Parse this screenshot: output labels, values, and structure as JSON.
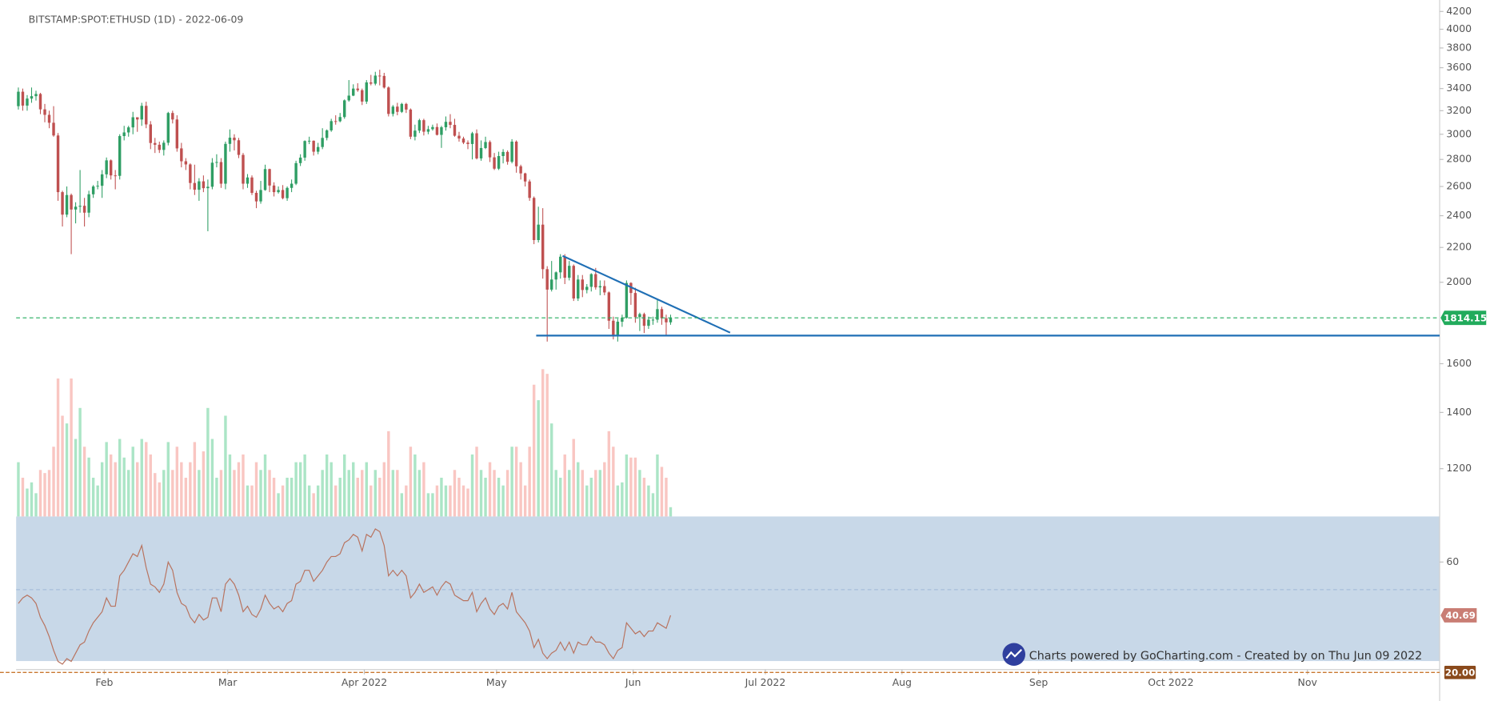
{
  "chart_data": {
    "type": "candlestick",
    "title": "BITSTAMP:SPOT:ETHUSD (1D) - 2022-06-09",
    "watermark": "Charts powered by GoCharting.com - Created by  on Thu Jun 09 2022",
    "x": [
      "2022-01-12",
      "2022-01-13",
      "2022-01-14",
      "2022-01-15",
      "2022-01-16",
      "2022-01-17",
      "2022-01-18",
      "2022-01-19",
      "2022-01-20",
      "2022-01-21",
      "2022-01-22",
      "2022-01-23",
      "2022-01-24",
      "2022-01-25",
      "2022-01-26",
      "2022-01-27",
      "2022-01-28",
      "2022-01-29",
      "2022-01-30",
      "2022-01-31",
      "2022-02-01",
      "2022-02-02",
      "2022-02-03",
      "2022-02-04",
      "2022-02-05",
      "2022-02-06",
      "2022-02-07",
      "2022-02-08",
      "2022-02-09",
      "2022-02-10",
      "2022-02-11",
      "2022-02-12",
      "2022-02-13",
      "2022-02-14",
      "2022-02-15",
      "2022-02-16",
      "2022-02-17",
      "2022-02-18",
      "2022-02-19",
      "2022-02-20",
      "2022-02-21",
      "2022-02-22",
      "2022-02-23",
      "2022-02-24",
      "2022-02-25",
      "2022-02-26",
      "2022-02-27",
      "2022-02-28",
      "2022-03-01",
      "2022-03-02",
      "2022-03-03",
      "2022-03-04",
      "2022-03-05",
      "2022-03-06",
      "2022-03-07",
      "2022-03-08",
      "2022-03-09",
      "2022-03-10",
      "2022-03-11",
      "2022-03-12",
      "2022-03-13",
      "2022-03-14",
      "2022-03-15",
      "2022-03-16",
      "2022-03-17",
      "2022-03-18",
      "2022-03-19",
      "2022-03-20",
      "2022-03-21",
      "2022-03-22",
      "2022-03-23",
      "2022-03-24",
      "2022-03-25",
      "2022-03-26",
      "2022-03-27",
      "2022-03-28",
      "2022-03-29",
      "2022-03-30",
      "2022-03-31",
      "2022-04-01",
      "2022-04-02",
      "2022-04-03",
      "2022-04-04",
      "2022-04-05",
      "2022-04-06",
      "2022-04-07",
      "2022-04-08",
      "2022-04-09",
      "2022-04-10",
      "2022-04-11",
      "2022-04-12",
      "2022-04-13",
      "2022-04-14",
      "2022-04-15",
      "2022-04-16",
      "2022-04-17",
      "2022-04-18",
      "2022-04-19",
      "2022-04-20",
      "2022-04-21",
      "2022-04-22",
      "2022-04-23",
      "2022-04-24",
      "2022-04-25",
      "2022-04-26",
      "2022-04-27",
      "2022-04-28",
      "2022-04-29",
      "2022-04-30",
      "2022-05-01",
      "2022-05-02",
      "2022-05-03",
      "2022-05-04",
      "2022-05-05",
      "2022-05-06",
      "2022-05-07",
      "2022-05-08",
      "2022-05-09",
      "2022-05-10",
      "2022-05-11",
      "2022-05-12",
      "2022-05-13",
      "2022-05-14",
      "2022-05-15",
      "2022-05-16",
      "2022-05-17",
      "2022-05-18",
      "2022-05-19",
      "2022-05-20",
      "2022-05-21",
      "2022-05-22",
      "2022-05-23",
      "2022-05-24",
      "2022-05-25",
      "2022-05-26",
      "2022-05-27",
      "2022-05-28",
      "2022-05-29",
      "2022-05-30",
      "2022-05-31",
      "2022-06-01",
      "2022-06-02",
      "2022-06-03",
      "2022-06-04",
      "2022-06-05",
      "2022-06-06",
      "2022-06-07",
      "2022-06-08",
      "2022-06-09"
    ],
    "open": [
      3240,
      3371,
      3245,
      3308,
      3330,
      3350,
      3212,
      3164,
      3096,
      2990,
      2560,
      2407,
      2540,
      2441,
      2460,
      2466,
      2420,
      2545,
      2600,
      2605,
      2688,
      2793,
      2680,
      2677,
      2985,
      3015,
      3057,
      3143,
      3124,
      3243,
      3082,
      2929,
      2915,
      2874,
      2931,
      3180,
      3124,
      2886,
      2786,
      2762,
      2625,
      2577,
      2637,
      2588,
      2598,
      2775,
      2780,
      2620,
      2922,
      2972,
      2951,
      2835,
      2620,
      2665,
      2555,
      2496,
      2575,
      2727,
      2607,
      2560,
      2575,
      2518,
      2590,
      2620,
      2772,
      2814,
      2945,
      2947,
      2860,
      2897,
      2970,
      3032,
      3110,
      3109,
      3145,
      3292,
      3335,
      3400,
      3385,
      3281,
      3458,
      3446,
      3523,
      3520,
      3410,
      3172,
      3236,
      3190,
      3260,
      3210,
      2980,
      3030,
      3118,
      3021,
      3042,
      3060,
      2995,
      3058,
      3104,
      3078,
      2988,
      2965,
      2932,
      2921,
      3008,
      2808,
      2889,
      2937,
      2816,
      2730,
      2826,
      2858,
      2782,
      2940,
      2748,
      2695,
      2636,
      2520,
      2245,
      2342,
      2073,
      1960,
      2015,
      2055,
      2145,
      2025,
      2092,
      1913,
      2015,
      1958,
      1975,
      2045,
      1972,
      1979,
      1945,
      1800,
      1725,
      1795,
      1815,
      1996,
      1942,
      1818,
      1833,
      1775,
      1805,
      1805,
      1858,
      1812,
      1792
    ],
    "high": [
      3410,
      3400,
      3340,
      3410,
      3380,
      3360,
      3260,
      3200,
      3240,
      3010,
      2570,
      2600,
      2550,
      2490,
      2720,
      2520,
      2570,
      2610,
      2640,
      2720,
      2815,
      2800,
      2720,
      3000,
      3070,
      3070,
      3190,
      3140,
      3270,
      3280,
      3110,
      2970,
      2940,
      2950,
      3190,
      3200,
      3160,
      2930,
      2810,
      2770,
      2760,
      2660,
      2680,
      2650,
      2810,
      2840,
      2810,
      2940,
      3040,
      3000,
      2970,
      2850,
      2690,
      2680,
      2570,
      2640,
      2760,
      2730,
      2630,
      2600,
      2610,
      2600,
      2650,
      2790,
      2840,
      2950,
      2980,
      2950,
      2930,
      3050,
      3040,
      3130,
      3160,
      3180,
      3300,
      3480,
      3440,
      3450,
      3400,
      3480,
      3530,
      3560,
      3580,
      3550,
      3420,
      3250,
      3270,
      3270,
      3270,
      3220,
      3080,
      3130,
      3130,
      3070,
      3080,
      3090,
      3070,
      3150,
      3170,
      3130,
      3020,
      2980,
      2950,
      3020,
      3040,
      2950,
      2980,
      2950,
      2850,
      2860,
      2880,
      2870,
      2960,
      2950,
      2760,
      2700,
      2650,
      2530,
      2460,
      2450,
      2090,
      2120,
      2060,
      2160,
      2160,
      2120,
      2100,
      2040,
      2040,
      1990,
      2050,
      2080,
      2010,
      2010,
      1950,
      1820,
      1810,
      1830,
      2010,
      2000,
      1970,
      1840,
      1840,
      1820,
      1820,
      1910,
      1870,
      1830,
      1830
    ],
    "low": [
      3210,
      3200,
      3200,
      3270,
      3290,
      3170,
      3100,
      3050,
      2980,
      2500,
      2330,
      2390,
      2160,
      2350,
      2420,
      2330,
      2390,
      2520,
      2580,
      2520,
      2660,
      2650,
      2580,
      2650,
      2950,
      2980,
      3000,
      3020,
      3070,
      3050,
      2880,
      2850,
      2850,
      2830,
      2910,
      3090,
      2860,
      2740,
      2720,
      2580,
      2540,
      2500,
      2560,
      2300,
      2580,
      2740,
      2590,
      2580,
      2860,
      2870,
      2810,
      2580,
      2590,
      2540,
      2450,
      2480,
      2570,
      2560,
      2530,
      2550,
      2510,
      2500,
      2560,
      2610,
      2750,
      2790,
      2920,
      2830,
      2840,
      2880,
      2950,
      3020,
      3080,
      3100,
      3130,
      3280,
      3330,
      3370,
      3250,
      3260,
      3430,
      3430,
      3430,
      3400,
      3150,
      3150,
      3160,
      3180,
      3180,
      2960,
      2950,
      3010,
      2990,
      3000,
      3030,
      2990,
      2890,
      3030,
      3050,
      2980,
      2940,
      2920,
      2880,
      2800,
      2800,
      2790,
      2880,
      2780,
      2720,
      2720,
      2770,
      2760,
      2770,
      2700,
      2650,
      2600,
      2500,
      2220,
      2230,
      2020,
      1700,
      1950,
      1960,
      2020,
      1990,
      2010,
      1900,
      1900,
      1920,
      1940,
      1950,
      1960,
      1930,
      1930,
      1760,
      1710,
      1700,
      1770,
      1810,
      1880,
      1790,
      1750,
      1740,
      1760,
      1780,
      1790,
      1780,
      1730,
      1780
    ],
    "close": [
      3371,
      3245,
      3308,
      3330,
      3350,
      3212,
      3164,
      3096,
      2990,
      2560,
      2407,
      2540,
      2441,
      2460,
      2466,
      2420,
      2545,
      2600,
      2605,
      2688,
      2793,
      2680,
      2677,
      2985,
      3015,
      3057,
      3143,
      3124,
      3243,
      3082,
      2929,
      2915,
      2874,
      2931,
      3180,
      3124,
      2886,
      2786,
      2762,
      2625,
      2577,
      2637,
      2588,
      2598,
      2775,
      2780,
      2620,
      2922,
      2972,
      2951,
      2835,
      2620,
      2665,
      2555,
      2496,
      2575,
      2727,
      2607,
      2560,
      2575,
      2518,
      2590,
      2620,
      2772,
      2814,
      2945,
      2947,
      2860,
      2897,
      2970,
      3032,
      3110,
      3109,
      3145,
      3292,
      3335,
      3400,
      3385,
      3281,
      3458,
      3446,
      3523,
      3520,
      3410,
      3172,
      3236,
      3190,
      3260,
      3210,
      2980,
      3030,
      3118,
      3021,
      3042,
      3060,
      2995,
      3058,
      3104,
      3078,
      2988,
      2965,
      2932,
      2921,
      3008,
      2808,
      2889,
      2937,
      2816,
      2730,
      2826,
      2858,
      2782,
      2940,
      2748,
      2695,
      2636,
      2520,
      2245,
      2342,
      2073,
      1960,
      2015,
      2055,
      2145,
      2025,
      2092,
      1913,
      2015,
      1958,
      1975,
      2045,
      1972,
      1979,
      1945,
      1800,
      1725,
      1795,
      1815,
      1996,
      1942,
      1818,
      1833,
      1775,
      1805,
      1805,
      1858,
      1812,
      1792,
      1814.15
    ],
    "volume": [
      35,
      25,
      18,
      22,
      15,
      30,
      28,
      30,
      45,
      89,
      65,
      60,
      89,
      50,
      70,
      45,
      38,
      25,
      20,
      35,
      48,
      40,
      35,
      50,
      38,
      30,
      45,
      35,
      50,
      48,
      40,
      28,
      22,
      30,
      48,
      30,
      45,
      35,
      25,
      35,
      48,
      30,
      42,
      70,
      50,
      25,
      30,
      65,
      40,
      30,
      35,
      40,
      20,
      20,
      35,
      30,
      40,
      30,
      25,
      15,
      20,
      25,
      25,
      35,
      35,
      40,
      20,
      15,
      20,
      30,
      40,
      35,
      20,
      25,
      40,
      30,
      35,
      25,
      30,
      35,
      20,
      30,
      25,
      35,
      55,
      30,
      30,
      15,
      20,
      45,
      40,
      30,
      35,
      15,
      15,
      20,
      25,
      20,
      20,
      30,
      25,
      20,
      18,
      40,
      45,
      30,
      25,
      35,
      30,
      25,
      20,
      30,
      45,
      45,
      35,
      20,
      45,
      85,
      75,
      95,
      92,
      60,
      30,
      25,
      40,
      30,
      50,
      35,
      30,
      20,
      25,
      30,
      30,
      35,
      55,
      45,
      20,
      22,
      40,
      38,
      38,
      30,
      25,
      20,
      15,
      40,
      32,
      25,
      6
    ],
    "rsi": [
      45,
      47,
      48,
      47,
      45,
      40,
      37,
      33,
      28,
      24,
      23,
      25,
      24,
      27,
      30,
      31,
      35,
      38,
      40,
      42,
      47,
      44,
      44,
      55,
      57,
      60,
      63,
      62,
      66,
      58,
      52,
      51,
      49,
      52,
      60,
      57,
      49,
      45,
      44,
      40,
      38,
      41,
      39,
      40,
      47,
      47,
      42,
      52,
      54,
      52,
      48,
      42,
      44,
      41,
      40,
      43,
      48,
      45,
      43,
      44,
      42,
      45,
      46,
      52,
      53,
      57,
      57,
      53,
      55,
      57,
      60,
      62,
      62,
      63,
      67,
      68,
      70,
      69,
      64,
      70,
      69,
      72,
      71,
      66,
      55,
      57,
      55,
      57,
      55,
      47,
      49,
      52,
      49,
      50,
      51,
      48,
      51,
      53,
      52,
      48,
      47,
      46,
      46,
      49,
      42,
      45,
      47,
      43,
      41,
      44,
      45,
      43,
      49,
      42,
      40,
      38,
      35,
      29,
      32,
      27,
      25,
      27,
      28,
      31,
      28,
      31,
      27,
      31,
      30,
      30,
      33,
      31,
      31,
      30,
      27,
      25,
      28,
      29,
      38,
      36,
      34,
      35,
      33,
      35,
      35,
      38,
      37,
      36,
      40.69
    ],
    "up_color": "#2f9e64",
    "down_color": "#bf5050",
    "volume_up_color": "#abe5c6",
    "volume_down_color": "#f9c6c2",
    "rsi_color": "#b8735f",
    "last_price_color": "#22ab5c",
    "rsi_label_color": "#c97d74",
    "log_scale": true,
    "ylim": [
      1050,
      4300
    ],
    "yticks": [
      1200,
      1400,
      1600,
      2000,
      2200,
      2400,
      2600,
      2800,
      3000,
      3200,
      3400,
      3600,
      3800,
      4000,
      4200
    ],
    "xlim": [
      "2022-01-12",
      "2022-12-01"
    ],
    "xticks": [
      {
        "value": "2022-02-01",
        "label": "Feb"
      },
      {
        "value": "2022-03-01",
        "label": "Mar"
      },
      {
        "value": "2022-04-01",
        "label": "Apr 2022"
      },
      {
        "value": "2022-05-01",
        "label": "May"
      },
      {
        "value": "2022-06-01",
        "label": "Jun"
      },
      {
        "value": "2022-07-01",
        "label": "Jul 2022"
      },
      {
        "value": "2022-08-01",
        "label": "Aug"
      },
      {
        "value": "2022-09-01",
        "label": "Sep"
      },
      {
        "value": "2022-10-01",
        "label": "Oct 2022"
      },
      {
        "value": "2022-11-01",
        "label": "Nov"
      }
    ],
    "volume_lim": [
      0,
      100
    ],
    "rsi_lim": [
      20,
      76.5
    ],
    "rsi_ticks": [
      60
    ],
    "rsi_levels": [
      50
    ],
    "rsi_floor": {
      "value": 20,
      "label": "20.00",
      "color": "#8a4a1c"
    },
    "trendlines": [
      {
        "start": [
          "2022-05-16",
          2150
        ],
        "end": [
          "2022-06-23",
          1742
        ],
        "color": "#1f6fb5"
      }
    ],
    "support": {
      "price": 1728,
      "start": "2022-05-10",
      "color": "#1f6fb5"
    }
  }
}
